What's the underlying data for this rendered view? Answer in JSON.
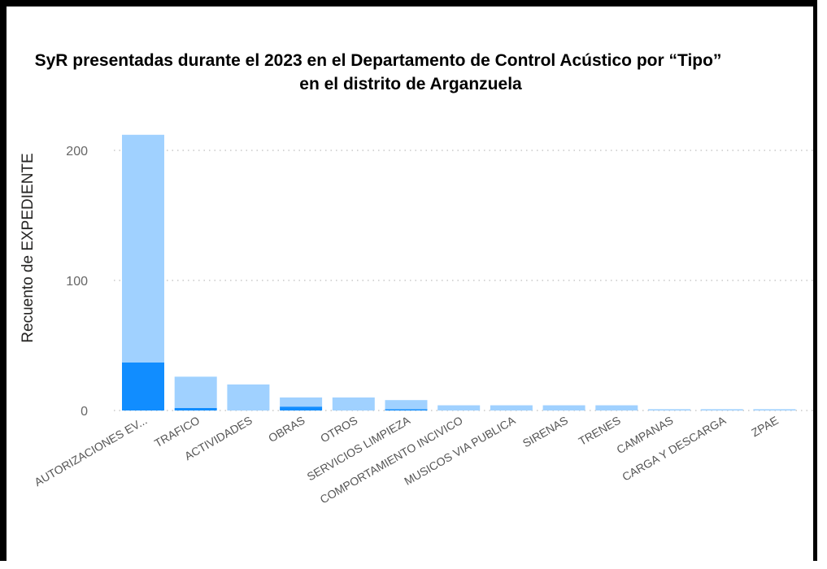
{
  "chart_data": {
    "type": "bar",
    "title": "SyR presentadas durante el 2023 en el Departamento de Control Acústico por “Tipo”",
    "subtitle": "en el distrito de Arganzuela",
    "ylabel": "Recuento de EXPEDIENTE",
    "xlabel": "",
    "stacked": true,
    "ylim": [
      0,
      215
    ],
    "yticks": [
      0,
      100,
      200
    ],
    "grid": "horizontal-dotted",
    "categories": [
      "AUTORIZACIONES EV...",
      "TRAFICO",
      "ACTIVIDADES",
      "OBRAS",
      "OTROS",
      "SERVICIOS LIMPIEZA",
      "COMPORTAMIENTO INCIVICO",
      "MUSICOS VIA PUBLICA",
      "SIRENAS",
      "TRENES",
      "CAMPANAS",
      "CARGA Y DESCARGA",
      "ZPAE"
    ],
    "series": [
      {
        "color": "#118dff",
        "values": [
          37,
          2,
          0,
          3,
          0,
          1,
          0,
          0,
          0,
          0,
          0,
          0,
          0
        ]
      },
      {
        "color": "#a0d1ff",
        "values": [
          175,
          24,
          20,
          7,
          10,
          7,
          4,
          4,
          4,
          4,
          1,
          1,
          1
        ]
      }
    ]
  }
}
